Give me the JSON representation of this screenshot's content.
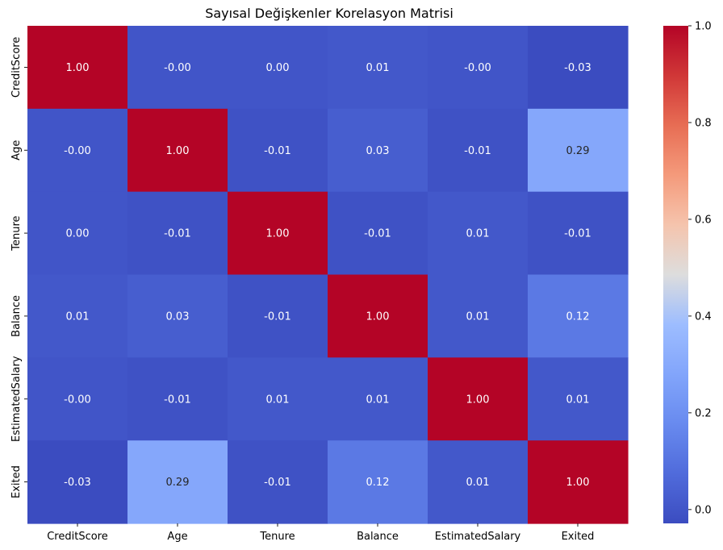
{
  "chart_data": {
    "type": "heatmap",
    "title": "Sayısal Değişkenler Korelasyon Matrisi",
    "x_labels": [
      "CreditScore",
      "Age",
      "Tenure",
      "Balance",
      "EstimatedSalary",
      "Exited"
    ],
    "y_labels": [
      "CreditScore",
      "Age",
      "Tenure",
      "Balance",
      "EstimatedSalary",
      "Exited"
    ],
    "values": [
      [
        1.0,
        -0.0,
        0.0,
        0.01,
        -0.0,
        -0.03
      ],
      [
        -0.0,
        1.0,
        -0.01,
        0.03,
        -0.01,
        0.29
      ],
      [
        0.0,
        -0.01,
        1.0,
        -0.01,
        0.01,
        -0.01
      ],
      [
        0.01,
        0.03,
        -0.01,
        1.0,
        0.01,
        0.12
      ],
      [
        -0.0,
        -0.01,
        0.01,
        0.01,
        1.0,
        0.01
      ],
      [
        -0.03,
        0.29,
        -0.01,
        0.12,
        0.01,
        1.0
      ]
    ],
    "display_values": [
      [
        "1.00",
        "-0.00",
        "0.00",
        "0.01",
        "-0.00",
        "-0.03"
      ],
      [
        "-0.00",
        "1.00",
        "-0.01",
        "0.03",
        "-0.01",
        "0.29"
      ],
      [
        "0.00",
        "-0.01",
        "1.00",
        "-0.01",
        "0.01",
        "-0.01"
      ],
      [
        "0.01",
        "0.03",
        "-0.01",
        "1.00",
        "0.01",
        "0.12"
      ],
      [
        "-0.00",
        "-0.01",
        "0.01",
        "0.01",
        "1.00",
        "0.01"
      ],
      [
        "-0.03",
        "0.29",
        "-0.01",
        "0.12",
        "0.01",
        "1.00"
      ]
    ],
    "colormap": "coolwarm",
    "vmin": -0.0286,
    "vmax": 1.0,
    "colorbar_ticks": [
      0.0,
      0.2,
      0.4,
      0.6,
      0.8,
      1.0
    ],
    "colorbar_tick_labels": [
      "0.0",
      "0.2",
      "0.4",
      "0.6",
      "0.8",
      "1.0"
    ],
    "annotation_colors": {
      "light": "#ffffff",
      "dark": "#262626"
    },
    "grid": false,
    "legend": "colorbar-right"
  }
}
